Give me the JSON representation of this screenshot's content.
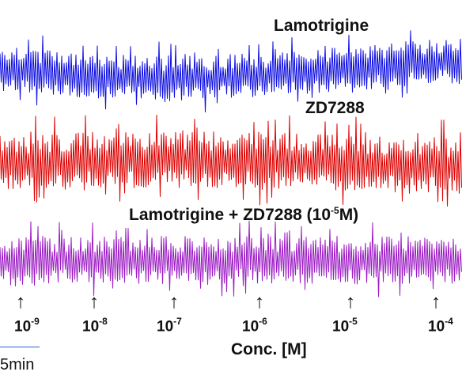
{
  "chart_data": {
    "type": "line",
    "title": "",
    "xlabel": "Conc. [M]",
    "ylabel": "",
    "markers": [
      {
        "mantissa": "10",
        "exponent": "-9"
      },
      {
        "mantissa": "10",
        "exponent": "-8"
      },
      {
        "mantissa": "10",
        "exponent": "-7"
      },
      {
        "mantissa": "10",
        "exponent": "-6"
      },
      {
        "mantissa": "10",
        "exponent": "-5"
      },
      {
        "mantissa": "10",
        "exponent": "-4"
      }
    ],
    "scale_bar": "5min",
    "series": [
      {
        "name": "Lamotrigine",
        "color": "#0d0de0",
        "label_parts": {
          "main": "Lamotrigine"
        }
      },
      {
        "name": "ZD7288",
        "color": "#dd0000",
        "label_parts": {
          "main": "ZD7288"
        }
      },
      {
        "name": "Lamotrigine + ZD7288 (10-5M)",
        "color": "#9c1cc4",
        "label_parts": {
          "main": "Lamotrigine + ZD7288 (10",
          "exp": "-5",
          "tail": "M)"
        }
      }
    ]
  }
}
